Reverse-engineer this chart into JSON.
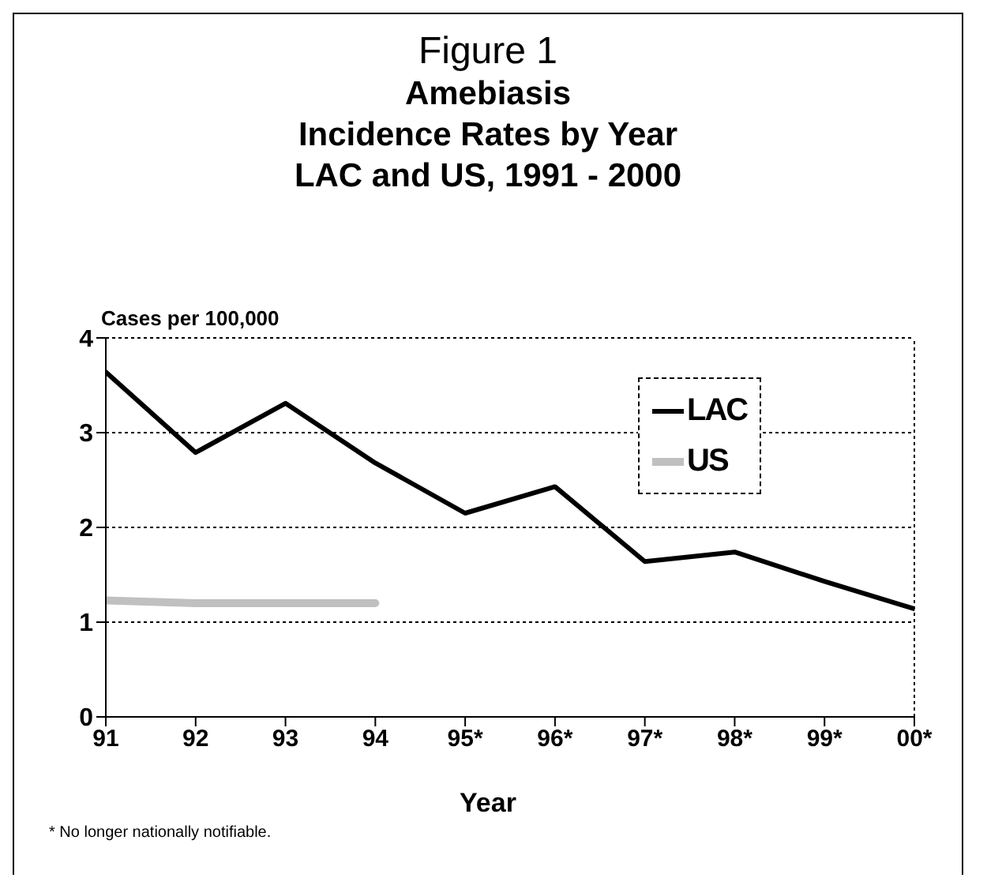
{
  "chart_data": {
    "type": "line",
    "title": "Figure 1",
    "subtitle": "Amebiasis\nIncidence Rates by Year\nLAC and US, 1991 - 2000",
    "xlabel": "Year",
    "ylabel": "Cases per 100,000",
    "categories": [
      "91",
      "92",
      "93",
      "94",
      "95*",
      "96*",
      "97*",
      "98*",
      "99*",
      "00*"
    ],
    "series": [
      {
        "name": "LAC",
        "color": "#000000",
        "values": [
          3.64,
          2.79,
          3.31,
          2.68,
          2.15,
          2.43,
          1.64,
          1.74,
          1.43,
          1.14
        ]
      },
      {
        "name": "US",
        "color": "#c0c0c0",
        "values": [
          1.23,
          1.2,
          1.2,
          1.2,
          null,
          null,
          null,
          null,
          null,
          null
        ]
      }
    ],
    "ylim": [
      0,
      4
    ],
    "yticks": [
      0,
      1,
      2,
      3,
      4
    ],
    "grid": "y",
    "legend": "top right",
    "marker": "none",
    "line_style": "solid",
    "annotations": [
      "* No longer nationally notifiable."
    ]
  }
}
